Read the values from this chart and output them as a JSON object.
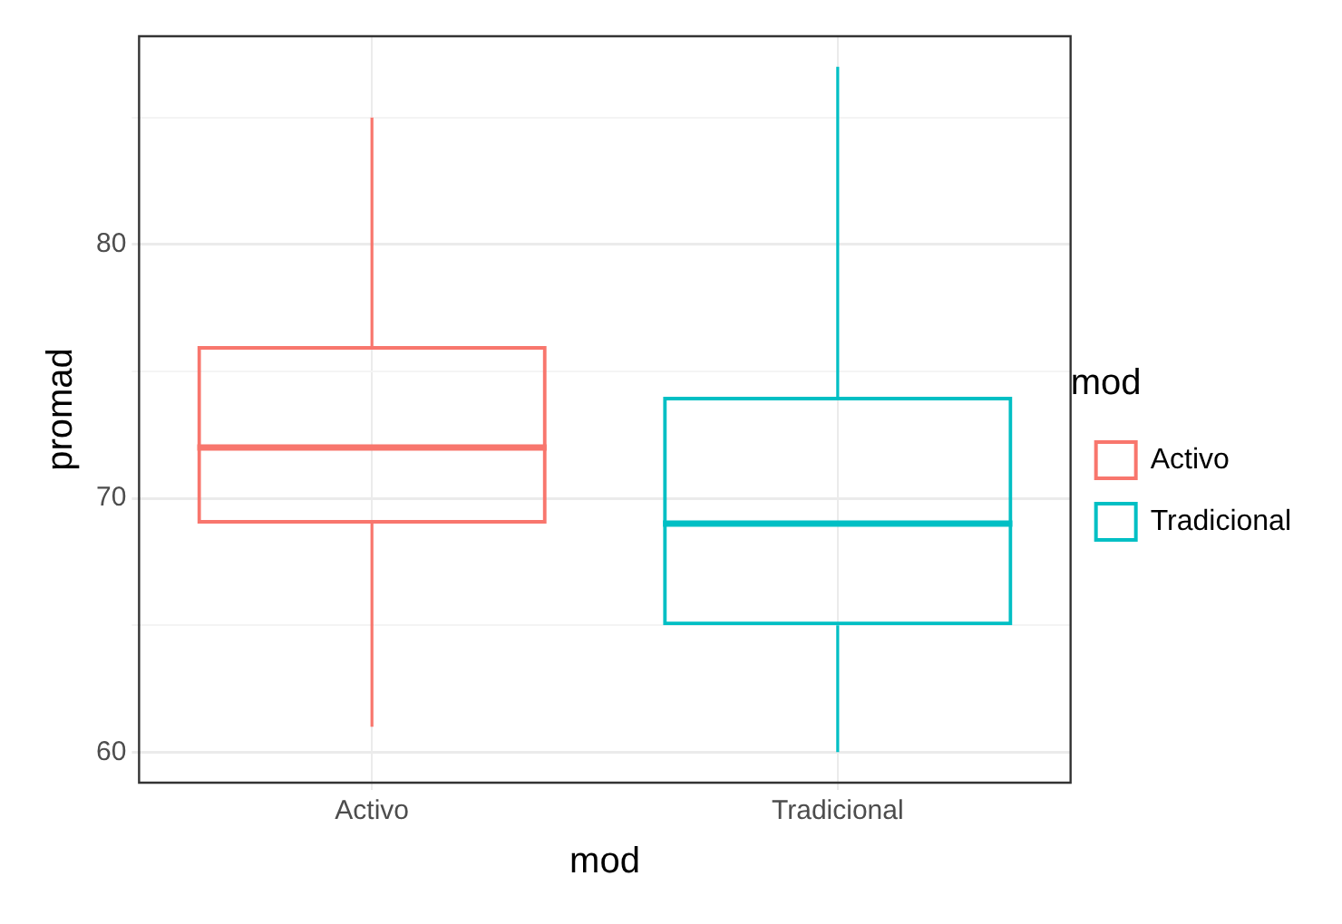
{
  "chart_data": {
    "type": "box",
    "xlabel": "mod",
    "ylabel": "promad",
    "legend_title": "mod",
    "legend": "right",
    "grid": true,
    "categories": [
      "Activo",
      "Tradicional"
    ],
    "series": [
      {
        "name": "Activo",
        "color": "#f8766d",
        "boxes": [
          {
            "low": 61,
            "q1": 69,
            "median": 72,
            "q3": 76,
            "high": 85
          },
          null
        ]
      },
      {
        "name": "Tradicional",
        "color": "#00bfc4",
        "boxes": [
          null,
          {
            "low": 60,
            "q1": 65,
            "median": 69,
            "q3": 74,
            "high": 87
          }
        ]
      }
    ],
    "ylim": [
      58.8,
      88.2
    ],
    "yticks": [
      60,
      {
        "value": 65,
        "label": null
      },
      70,
      {
        "value": 75,
        "label": null
      },
      80,
      {
        "value": 85,
        "label": null
      }
    ]
  }
}
